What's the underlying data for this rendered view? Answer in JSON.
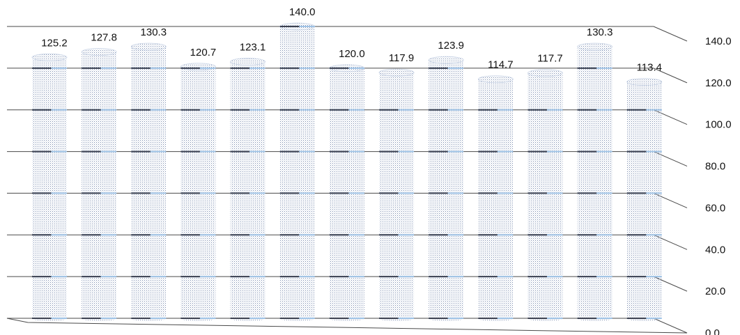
{
  "chart_data": {
    "type": "bar",
    "title": "",
    "xlabel": "",
    "ylabel": "",
    "ylim": [
      0,
      140
    ],
    "y_ticks": [
      "0.0",
      "20.0",
      "40.0",
      "60.0",
      "80.0",
      "100.0",
      "120.0",
      "140.0"
    ],
    "y_tick_values": [
      0,
      20,
      40,
      60,
      80,
      100,
      120,
      140
    ],
    "grid": true,
    "legend": "none",
    "bar_style": "3d-cylinder-dotted",
    "values": [
      125.2,
      127.8,
      130.3,
      120.7,
      123.1,
      140.0,
      120.0,
      117.9,
      123.9,
      114.7,
      117.7,
      130.3,
      113.4
    ],
    "value_labels": [
      "125.2",
      "127.8",
      "130.3",
      "120.7",
      "123.1",
      "140.0",
      "120.0",
      "117.9",
      "123.9",
      "114.7",
      "117.7",
      "130.3",
      "113.4"
    ],
    "colors": {
      "bar_dot": "#7f8fb0",
      "bar_band": "#3c4150",
      "grid_back": "#9fc3e6",
      "grid_line": "#4a4a4a"
    }
  }
}
